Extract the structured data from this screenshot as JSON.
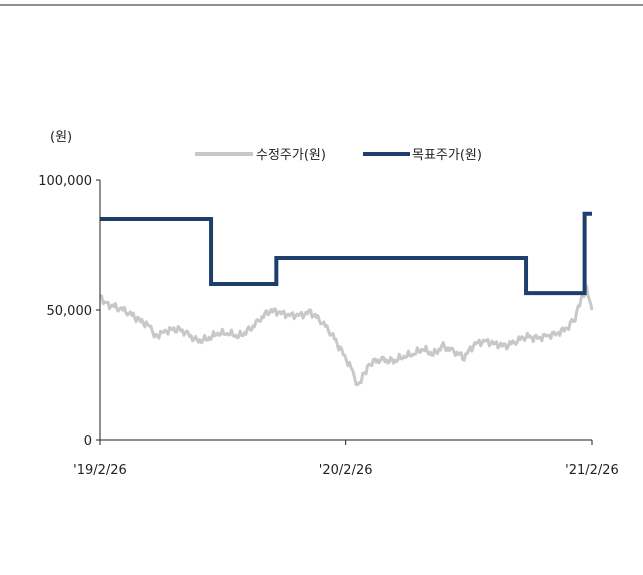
{
  "chart_data": {
    "type": "line",
    "ylabel": "(원)",
    "ylim": [
      0,
      100000
    ],
    "y_ticks": [
      {
        "value": 0,
        "label": "0"
      },
      {
        "value": 50000,
        "label": "50,000"
      },
      {
        "value": 100000,
        "label": "100,000"
      }
    ],
    "x_range": [
      "2019-02-26",
      "2021-02-26"
    ],
    "x_ticks": [
      {
        "date": "2019-02-26",
        "label": "'19/2/26"
      },
      {
        "date": "2020-02-26",
        "label": "'20/2/26"
      },
      {
        "date": "2021-02-26",
        "label": "'21/2/26"
      }
    ],
    "legend_position": "top",
    "series": [
      {
        "name": "수정주가(원)",
        "color": "#c8c8c8",
        "style": "line",
        "points": [
          [
            "2019-02-26",
            55000
          ],
          [
            "2019-03-10",
            52000
          ],
          [
            "2019-03-25",
            51000
          ],
          [
            "2019-04-10",
            49000
          ],
          [
            "2019-04-25",
            46000
          ],
          [
            "2019-05-10",
            44000
          ],
          [
            "2019-05-20",
            40000
          ],
          [
            "2019-06-05",
            42000
          ],
          [
            "2019-06-20",
            43000
          ],
          [
            "2019-07-05",
            41000
          ],
          [
            "2019-07-20",
            38000
          ],
          [
            "2019-08-05",
            39000
          ],
          [
            "2019-08-20",
            41000
          ],
          [
            "2019-09-05",
            41000
          ],
          [
            "2019-09-20",
            40000
          ],
          [
            "2019-10-05",
            42000
          ],
          [
            "2019-10-20",
            46000
          ],
          [
            "2019-11-05",
            50000
          ],
          [
            "2019-11-20",
            49000
          ],
          [
            "2019-12-05",
            48000
          ],
          [
            "2019-12-20",
            48000
          ],
          [
            "2020-01-05",
            49000
          ],
          [
            "2020-01-20",
            46000
          ],
          [
            "2020-02-05",
            41000
          ],
          [
            "2020-02-20",
            34000
          ],
          [
            "2020-03-05",
            28000
          ],
          [
            "2020-03-15",
            21000
          ],
          [
            "2020-03-25",
            26000
          ],
          [
            "2020-04-05",
            30000
          ],
          [
            "2020-04-20",
            31000
          ],
          [
            "2020-05-05",
            30000
          ],
          [
            "2020-05-20",
            32000
          ],
          [
            "2020-06-05",
            33000
          ],
          [
            "2020-06-20",
            35000
          ],
          [
            "2020-07-05",
            33000
          ],
          [
            "2020-07-20",
            36000
          ],
          [
            "2020-08-05",
            34000
          ],
          [
            "2020-08-20",
            32000
          ],
          [
            "2020-09-05",
            37000
          ],
          [
            "2020-09-20",
            38000
          ],
          [
            "2020-10-05",
            37000
          ],
          [
            "2020-10-20",
            36000
          ],
          [
            "2020-11-05",
            38000
          ],
          [
            "2020-11-20",
            40000
          ],
          [
            "2020-12-05",
            39000
          ],
          [
            "2020-12-20",
            40000
          ],
          [
            "2021-01-05",
            41000
          ],
          [
            "2021-01-20",
            43000
          ],
          [
            "2021-02-01",
            47000
          ],
          [
            "2021-02-10",
            54000
          ],
          [
            "2021-02-18",
            58000
          ],
          [
            "2021-02-22",
            55000
          ],
          [
            "2021-02-26",
            50000
          ]
        ]
      },
      {
        "name": "목표주가(원)",
        "color": "#1e3f6e",
        "style": "step",
        "points": [
          [
            "2019-02-26",
            85000
          ],
          [
            "2019-08-10",
            85000
          ],
          [
            "2019-08-10",
            60000
          ],
          [
            "2019-11-15",
            60000
          ],
          [
            "2019-11-15",
            70000
          ],
          [
            "2020-11-20",
            70000
          ],
          [
            "2020-11-20",
            56500
          ],
          [
            "2021-02-15",
            56500
          ],
          [
            "2021-02-15",
            87000
          ],
          [
            "2021-02-26",
            87000
          ]
        ]
      }
    ]
  }
}
